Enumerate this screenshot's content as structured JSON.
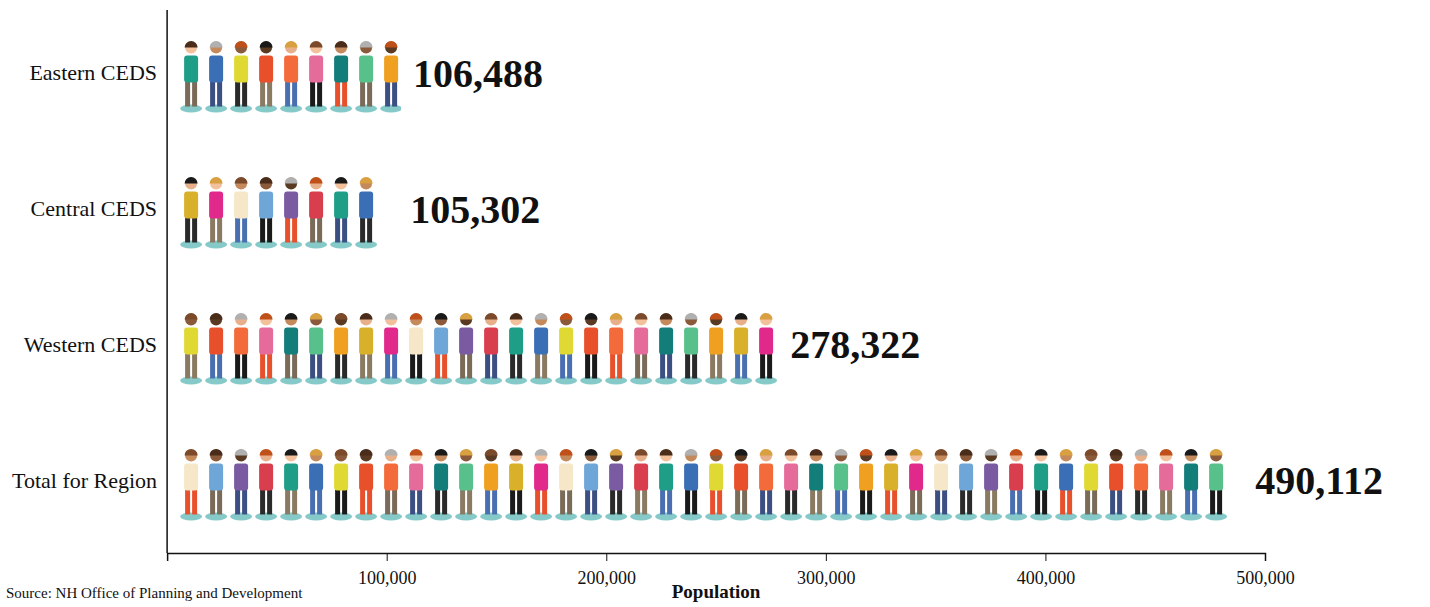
{
  "chart_data": {
    "type": "bar",
    "orientation": "horizontal",
    "categories": [
      "Eastern CEDS",
      "Central CEDS",
      "Western CEDS",
      "Total for Region"
    ],
    "values": [
      106488,
      105302,
      278322,
      490112
    ],
    "value_labels": [
      "106,488",
      "105,302",
      "278,322",
      "490,112"
    ],
    "data_labels": true,
    "x_label": "Population",
    "source": "Source: NH Office of Planning and Development",
    "xlim": [
      0,
      500000
    ],
    "xticks": [
      {
        "value": 100000,
        "label": "100,000"
      },
      {
        "value": 200000,
        "label": "200,000"
      },
      {
        "value": 300000,
        "label": "300,000"
      },
      {
        "value": 400000,
        "label": "400,000"
      },
      {
        "value": 500000,
        "label": "500,000"
      }
    ],
    "grid": false
  }
}
